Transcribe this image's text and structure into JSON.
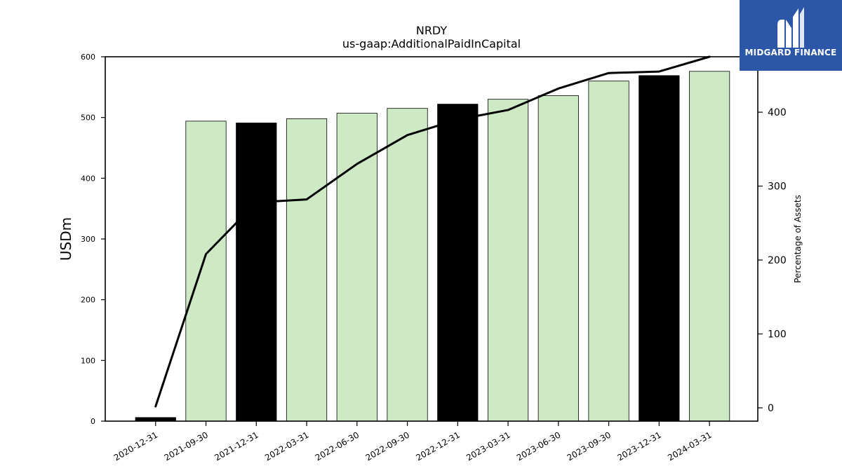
{
  "chart_data": {
    "type": "bar",
    "title": "NRDY",
    "subtitle": "us-gaap:AdditionalPaidInCapital",
    "categories": [
      "2020-12-31",
      "2021-09-30",
      "2021-12-31",
      "2022-03-31",
      "2022-06-30",
      "2022-09-30",
      "2022-12-31",
      "2023-03-31",
      "2023-06-30",
      "2023-09-30",
      "2023-12-31",
      "2024-03-31"
    ],
    "bar_values": [
      6,
      494,
      491,
      498,
      507,
      515,
      522,
      530,
      536,
      560,
      569,
      576
    ],
    "bar_colors": [
      "#000000",
      "#cdeac5",
      "#000000",
      "#cdeac5",
      "#cdeac5",
      "#cdeac5",
      "#000000",
      "#cdeac5",
      "#cdeac5",
      "#cdeac5",
      "#000000",
      "#cdeac5"
    ],
    "line_values": [
      2,
      208,
      278,
      282,
      330,
      369,
      390,
      403,
      432,
      453,
      455,
      475
    ],
    "ylabel_left": "USDm",
    "ylabel_right": "Percentage of Assets",
    "ylim_left": [
      0,
      600
    ],
    "yticks_left": [
      0,
      100,
      200,
      300,
      400,
      500,
      600
    ],
    "ylim_right": [
      -18,
      475
    ],
    "yticks_right": [
      0,
      100,
      200,
      300,
      400
    ],
    "grid": false
  },
  "logo": {
    "text": "MIDGARD FINANCE",
    "color": "#2c57a8"
  }
}
